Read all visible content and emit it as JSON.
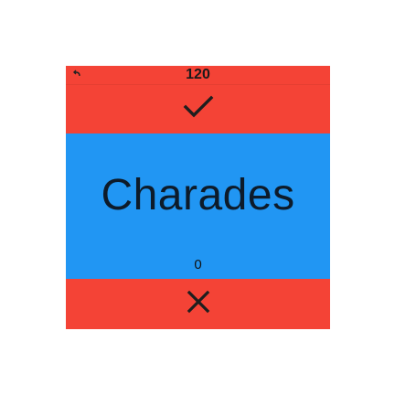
{
  "header": {
    "back_icon": "back-arrow-icon",
    "timer": "120"
  },
  "controls": {
    "correct_icon": "check-icon",
    "skip_icon": "close-icon"
  },
  "card": {
    "word": "Charades",
    "score": "0"
  },
  "colors": {
    "action_bar": "#f44336",
    "card_background": "#2196f3",
    "word_text": "#0d1b2a"
  }
}
